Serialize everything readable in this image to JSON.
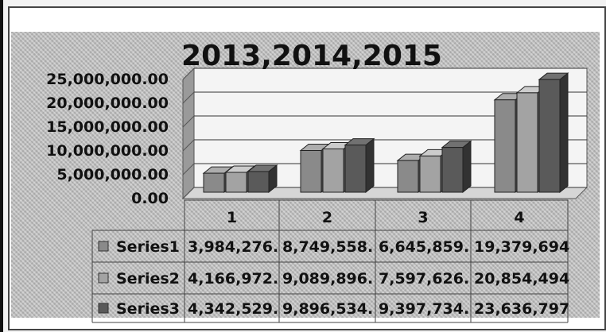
{
  "chart_data": {
    "type": "bar",
    "title": "2013,2014,2015",
    "categories": [
      "1",
      "2",
      "3",
      "4"
    ],
    "yticks": [
      "25,000,000.00",
      "20,000,000.00",
      "15,000,000.00",
      "10,000,000.00",
      "5,000,000.00",
      "0.00"
    ],
    "ylim": [
      0,
      25000000
    ],
    "grid": true,
    "legend": "data-table",
    "series": [
      {
        "name": "Series1",
        "values": [
          3984276,
          8749558,
          6645859,
          19379694
        ],
        "labels": [
          "3,984,276.",
          "8,749,558.",
          "6,645,859.",
          "19,379,694"
        ],
        "color": "#8a8a8a"
      },
      {
        "name": "Series2",
        "values": [
          4166972,
          9089896,
          7597626,
          20854494
        ],
        "labels": [
          "4,166,972.",
          "9,089,896.",
          "7,597,626.",
          "20,854,494"
        ],
        "color": "#a3a3a3"
      },
      {
        "name": "Series3",
        "values": [
          4342529,
          9896534,
          9397734,
          23636797
        ],
        "labels": [
          "4,342,529.",
          "9,896,534.",
          "9,397,734.",
          "23,636,797"
        ],
        "color": "#5a5a5a"
      }
    ]
  }
}
